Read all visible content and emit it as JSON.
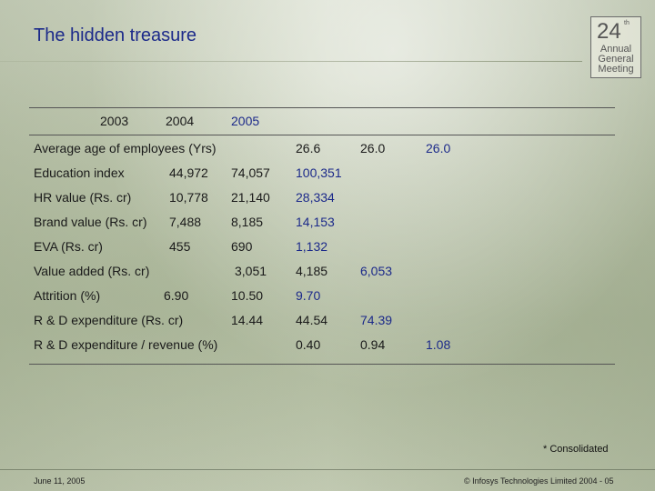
{
  "slide": {
    "title": "The hidden treasure",
    "badge": {
      "number": "24",
      "suffix": "th",
      "line1": "Annual",
      "line2": "General",
      "line3": "Meeting"
    },
    "year_headers": [
      "2003",
      "2004",
      "2005"
    ],
    "rows": [
      {
        "label": "Average age of employees (Yrs)",
        "v2003": "26.6",
        "v2004": "26.0",
        "v2005": "26.0"
      },
      {
        "label": "Education index",
        "v2003": "44,972",
        "v2004": "74,057",
        "v2005": "100,351"
      },
      {
        "label": "HR value (Rs. cr)",
        "v2003": "10,778",
        "v2004": "21,140",
        "v2005": "28,334"
      },
      {
        "label": "Brand value (Rs. cr)",
        "v2003": "7,488",
        "v2004": "8,185",
        "v2005": "14,153"
      },
      {
        "label": "EVA (Rs. cr)",
        "v2003": "455",
        "v2004": "690",
        "v2005": "1,132"
      },
      {
        "label": "Value added (Rs. cr)",
        "v2003": "3,051",
        "v2004": "4,185",
        "v2005": "6,053"
      },
      {
        "label": "Attrition (%)",
        "v2003": "6.90",
        "v2004": "10.50",
        "v2005": "9.70"
      },
      {
        "label": "R & D expenditure (Rs. cr)",
        "v2003": "14.44",
        "v2004": "44.54",
        "v2005": "74.39"
      },
      {
        "label": "R & D expenditure / revenue (%)",
        "v2003": "0.40",
        "v2004": "0.94",
        "v2005": "1.08"
      }
    ],
    "note": "* Consolidated",
    "footer_date": "June 11, 2005",
    "footer_copyright": "© Infosys Technologies Limited 2004 - 05"
  },
  "colors": {
    "title": "#1c2a8a",
    "value_2005": "#1c2a8a"
  }
}
